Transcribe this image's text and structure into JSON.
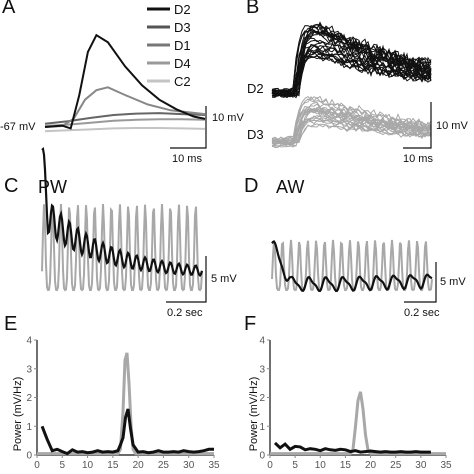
{
  "panels": {
    "A": {
      "label": "A",
      "legend": [
        {
          "name": "D2",
          "color": "#111111"
        },
        {
          "name": "D3",
          "color": "#555555"
        },
        {
          "name": "D1",
          "color": "#777777"
        },
        {
          "name": "D4",
          "color": "#999999"
        },
        {
          "name": "C2",
          "color": "#c4c4c4"
        }
      ],
      "baseline_label": "-67 mV",
      "scalebar_v": "10 mV",
      "scalebar_h": "10 ms"
    },
    "B": {
      "label": "B",
      "trace_label_top": "D2",
      "trace_label_bottom": "D3",
      "scalebar_v": "10 mV",
      "scalebar_h": "10 ms"
    },
    "C": {
      "label": "C",
      "title": "PW",
      "scalebar_v": "5 mV",
      "scalebar_h": "0.2 sec"
    },
    "D": {
      "label": "D",
      "title": "AW",
      "scalebar_v": "5 mV",
      "scalebar_h": "0.2 sec"
    },
    "E": {
      "label": "E",
      "ylabel": "Power (mV/Hz)"
    },
    "F": {
      "label": "F",
      "ylabel": "Power (mV/Hz)"
    }
  },
  "colors": {
    "dark": "#111111",
    "gray": "#a8a8a8",
    "black_trace": "#111111"
  },
  "chart_data": [
    {
      "panel": "A",
      "type": "line",
      "title": "",
      "series": [
        {
          "name": "D2",
          "color": "#111111",
          "x": [
            0,
            3,
            4.5,
            6,
            7.5,
            9,
            11,
            14,
            17,
            20,
            23,
            26,
            28
          ],
          "y": [
            0.3,
            0.6,
            0,
            7,
            16,
            19.5,
            18,
            13,
            9,
            6,
            4,
            2.5,
            2
          ]
        },
        {
          "name": "D3",
          "color": "#888888",
          "x": [
            0,
            3,
            5,
            7,
            9,
            11,
            14,
            18,
            22,
            28
          ],
          "y": [
            0.3,
            0.5,
            2,
            6,
            8,
            8.6,
            7,
            5,
            3.8,
            3
          ]
        },
        {
          "name": "D1",
          "color": "#666666",
          "x": [
            0,
            4,
            8,
            12,
            16,
            20,
            24,
            28
          ],
          "y": [
            1,
            1.5,
            2.2,
            2.8,
            3.1,
            3.2,
            3,
            2.8
          ]
        },
        {
          "name": "D4",
          "color": "#999999",
          "x": [
            0,
            4,
            8,
            12,
            16,
            20,
            24,
            28
          ],
          "y": [
            0.5,
            0.8,
            1.2,
            1.6,
            1.8,
            1.9,
            1.9,
            1.8
          ]
        },
        {
          "name": "C2",
          "color": "#c4c4c4",
          "x": [
            0,
            4,
            8,
            12,
            16,
            20,
            24,
            28
          ],
          "y": [
            -0.6,
            -0.4,
            -0.2,
            0,
            0.1,
            0.1,
            0,
            -0.1
          ]
        }
      ],
      "xlim": [
        0,
        28
      ],
      "ylim": [
        -2,
        21
      ]
    },
    {
      "panel": "E",
      "type": "line",
      "xlabel": "",
      "ylabel": "Power (mV/Hz)",
      "xlim": [
        0,
        35
      ],
      "ylim": [
        0,
        4
      ],
      "xticks": [
        0,
        5,
        10,
        15,
        20,
        25,
        30,
        35
      ],
      "yticks": [
        0,
        1,
        2,
        3,
        4
      ],
      "series": [
        {
          "color": "#a8a8a8",
          "x": [
            0,
            1,
            2,
            3,
            4,
            5,
            6,
            8,
            10,
            12,
            14,
            15,
            16,
            16.5,
            17,
            17.4,
            17.8,
            18.2,
            18.6,
            19,
            19.5,
            20,
            21,
            23,
            25,
            27,
            29,
            31,
            33,
            35
          ],
          "y": [
            0.05,
            0.05,
            0.05,
            0.05,
            0.05,
            0.05,
            0.05,
            0.05,
            0.05,
            0.05,
            0.05,
            0.05,
            0.05,
            0.2,
            1.5,
            3.3,
            3.55,
            2.5,
            1,
            0.2,
            0.05,
            0.05,
            0.05,
            0.05,
            0.05,
            0.05,
            0.05,
            0.05,
            0.05,
            0.05
          ]
        },
        {
          "color": "#111111",
          "x": [
            1,
            2,
            3,
            4,
            5,
            6,
            7,
            8,
            9,
            10,
            11,
            12,
            13,
            14,
            15,
            16,
            16.5,
            17,
            17.5,
            18,
            18.5,
            19,
            20,
            21,
            22,
            23,
            24,
            25,
            26,
            27,
            28,
            29,
            30,
            31,
            32,
            33,
            34,
            35
          ],
          "y": [
            1.0,
            0.55,
            0.15,
            0.2,
            0.12,
            0.05,
            0.18,
            0.1,
            0.12,
            0.08,
            0.1,
            0.15,
            0.1,
            0.12,
            0.1,
            0.15,
            0.35,
            0.6,
            1.3,
            1.6,
            0.9,
            0.35,
            0.1,
            0.12,
            0.08,
            0.1,
            0.15,
            0.1,
            0.1,
            0.12,
            0.1,
            0.15,
            0.12,
            0.1,
            0.12,
            0.15,
            0.2,
            0.2
          ]
        }
      ]
    },
    {
      "panel": "F",
      "type": "line",
      "xlabel": "",
      "ylabel": "Power (mV/Hz)",
      "xlim": [
        0,
        35
      ],
      "ylim": [
        0,
        4
      ],
      "xticks": [
        0,
        5,
        10,
        15,
        20,
        25,
        30,
        35
      ],
      "yticks": [
        0,
        1,
        2,
        3,
        4
      ],
      "series": [
        {
          "color": "#a8a8a8",
          "x": [
            0,
            2,
            4,
            6,
            8,
            10,
            12,
            14,
            15,
            16,
            16.5,
            17,
            17.5,
            18,
            18.5,
            19,
            19.5,
            20,
            22,
            24,
            26,
            28,
            30,
            32,
            35
          ],
          "y": [
            0.05,
            0.05,
            0.05,
            0.05,
            0.05,
            0.05,
            0.05,
            0.05,
            0.05,
            0.05,
            0.2,
            1.0,
            1.9,
            2.2,
            1.6,
            0.7,
            0.15,
            0.05,
            0.05,
            0.05,
            0.05,
            0.05,
            0.05,
            0.05,
            0.05
          ]
        },
        {
          "color": "#111111",
          "x": [
            1,
            2,
            3,
            4,
            5,
            6,
            7,
            8,
            9,
            10,
            11,
            12,
            13,
            14,
            15,
            16,
            17,
            18,
            19,
            20,
            21,
            22,
            23,
            24,
            25,
            26,
            27,
            28,
            29,
            30,
            31,
            32
          ],
          "y": [
            0.42,
            0.25,
            0.38,
            0.2,
            0.3,
            0.28,
            0.18,
            0.22,
            0.2,
            0.15,
            0.22,
            0.18,
            0.16,
            0.2,
            0.18,
            0.12,
            0.15,
            0.1,
            0.12,
            0.14,
            0.12,
            0.1,
            0.12,
            0.1,
            0.1,
            0.12,
            0.1,
            0.1,
            0.12,
            0.1,
            0.1,
            0.1
          ]
        }
      ]
    }
  ]
}
